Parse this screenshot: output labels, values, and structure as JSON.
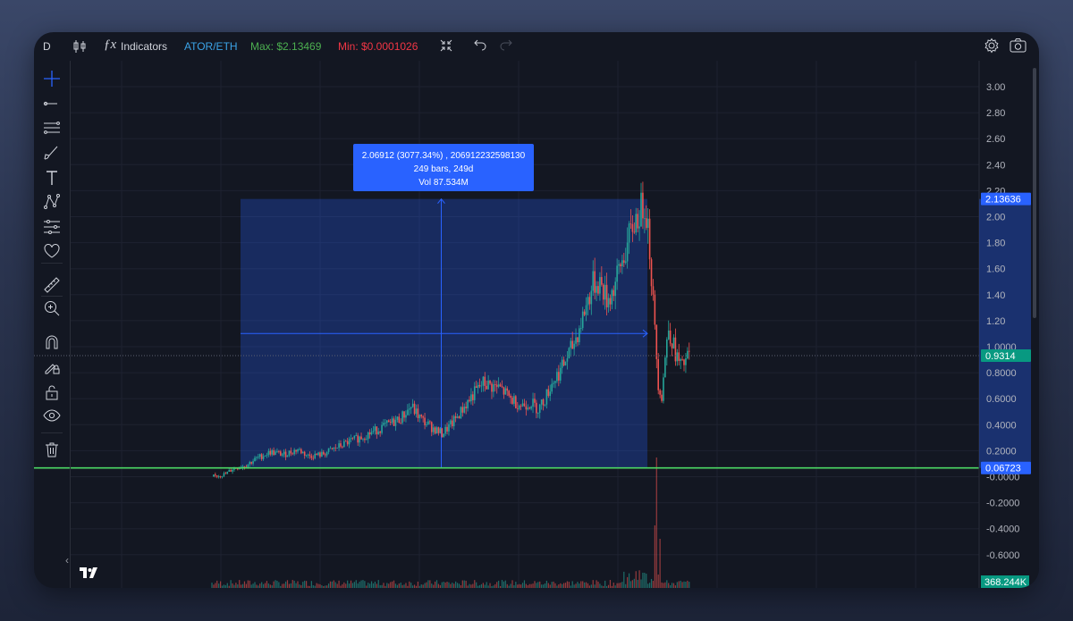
{
  "toolbar": {
    "interval": "D",
    "indicators_label": "Indicators",
    "symbol": "ATOR/ETH",
    "max_label": "Max: $2.13469",
    "min_label": "Min: $0.0001026"
  },
  "colors": {
    "background": "#131722",
    "up": "#26a69a",
    "down": "#ef5350",
    "accent": "#2962ff",
    "range_fill": "#2962ff",
    "baseline": "#4cd964",
    "last_price": "#089981",
    "symbol": "#3ba4e8",
    "max_text": "#4caf50",
    "min_text": "#f23645"
  },
  "left_tools": [
    "crosshair-icon",
    "trend-line-icon",
    "fib-retracement-icon",
    "brush-icon",
    "text-icon",
    "pattern-icon",
    "forecast-icon",
    "heart-icon",
    "ruler-icon",
    "zoom-in-icon",
    "magnet-icon",
    "lock-drawing-icon",
    "lock-icon",
    "eye-icon",
    "trash-icon"
  ],
  "measure_tooltip": {
    "line1": "2.06912 (3077.34%) , 206912232598130",
    "line2": "249 bars, 249d",
    "line3": "Vol 87.534M"
  },
  "chart_data": {
    "type": "candlestick",
    "symbol": "ATOR/ETH",
    "y_ticks": [
      3.0,
      2.8,
      2.6,
      2.4,
      2.2,
      2.0,
      1.8,
      1.6,
      1.4,
      1.2,
      1.0,
      0.8,
      0.6,
      0.4,
      0.2,
      0.0,
      -0.2,
      -0.4,
      -0.6
    ],
    "y_tick_labels": [
      "3.00",
      "2.80",
      "2.60",
      "2.40",
      "2.20",
      "2.00",
      "1.80",
      "1.60",
      "1.40",
      "1.20",
      "1.0000",
      "0.8000",
      "0.6000",
      "0.4000",
      "0.2000",
      "-0.0000",
      "-0.2000",
      "-0.4000",
      "-0.6000"
    ],
    "ylim": [
      -0.75,
      3.1
    ],
    "measure_range": {
      "low": 0.06723,
      "high": 2.13636,
      "change": 2.06912,
      "percent": 3077.34,
      "bars": 249,
      "days": 249,
      "volume": "87.534M"
    },
    "price_labels": [
      {
        "value": 2.13636,
        "text": "2.13636",
        "color": "#2962ff"
      },
      {
        "value": 0.9314,
        "text": "0.9314",
        "color": "#089981"
      },
      {
        "value": 0.06723,
        "text": "0.06723",
        "color": "#2962ff"
      }
    ],
    "volume_label": "368.244K",
    "horizontal_line": 0.06723,
    "last_price": 0.9314,
    "grid": true,
    "price_path": [
      [
        0,
        0.0
      ],
      [
        8,
        0.02
      ],
      [
        12,
        0.06
      ],
      [
        20,
        0.09
      ],
      [
        26,
        0.14
      ],
      [
        34,
        0.19
      ],
      [
        42,
        0.17
      ],
      [
        50,
        0.21
      ],
      [
        56,
        0.16
      ],
      [
        64,
        0.17
      ],
      [
        72,
        0.22
      ],
      [
        80,
        0.27
      ],
      [
        88,
        0.31
      ],
      [
        96,
        0.36
      ],
      [
        104,
        0.41
      ],
      [
        110,
        0.45
      ],
      [
        116,
        0.54
      ],
      [
        122,
        0.44
      ],
      [
        128,
        0.38
      ],
      [
        134,
        0.33
      ],
      [
        140,
        0.41
      ],
      [
        146,
        0.52
      ],
      [
        152,
        0.63
      ],
      [
        158,
        0.72
      ],
      [
        162,
        0.7
      ],
      [
        168,
        0.68
      ],
      [
        174,
        0.6
      ],
      [
        180,
        0.55
      ],
      [
        186,
        0.57
      ],
      [
        190,
        0.52
      ],
      [
        194,
        0.6
      ],
      [
        198,
        0.72
      ],
      [
        204,
        0.84
      ],
      [
        210,
        1.0
      ],
      [
        214,
        1.14
      ],
      [
        218,
        1.32
      ],
      [
        222,
        1.48
      ],
      [
        226,
        1.5
      ],
      [
        230,
        1.36
      ],
      [
        234,
        1.44
      ],
      [
        238,
        1.62
      ],
      [
        242,
        1.78
      ],
      [
        246,
        1.96
      ],
      [
        250,
        2.05
      ],
      [
        252,
        2.12
      ],
      [
        254,
        1.95
      ],
      [
        256,
        1.55
      ],
      [
        258,
        1.12
      ],
      [
        260,
        0.72
      ],
      [
        262,
        0.62
      ],
      [
        264,
        0.92
      ],
      [
        266,
        1.15
      ],
      [
        268,
        1.05
      ],
      [
        270,
        0.95
      ],
      [
        272,
        0.88
      ],
      [
        274,
        0.84
      ],
      [
        276,
        0.9
      ],
      [
        278,
        0.93
      ]
    ],
    "volume_spike_bar": 259
  }
}
